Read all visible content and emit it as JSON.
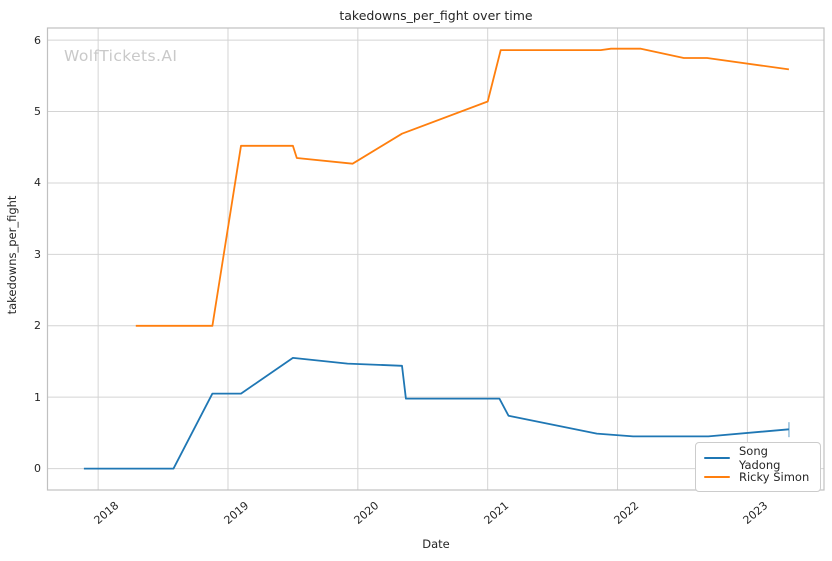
{
  "watermark": "WolfTickets.AI",
  "chart_data": {
    "type": "line",
    "title": "takedowns_per_fight over time",
    "xlabel": "Date",
    "ylabel": "takedowns_per_fight",
    "grid": true,
    "legend_position": "lower right",
    "xlim": [
      2017.61,
      2023.59
    ],
    "ylim": [
      -0.3,
      6.17
    ],
    "xticks": {
      "values": [
        2018,
        2019,
        2020,
        2021,
        2022,
        2023
      ],
      "labels": [
        "2018",
        "2019",
        "2020",
        "2021",
        "2022",
        "2023"
      ]
    },
    "yticks": {
      "values": [
        0,
        1,
        2,
        3,
        4,
        5,
        6
      ],
      "labels": [
        "0",
        "1",
        "2",
        "3",
        "4",
        "5",
        "6"
      ]
    },
    "series": [
      {
        "name": "Song Yadong",
        "color": "#1f77b4",
        "x": [
          2017.89,
          2018.58,
          2018.88,
          2019.1,
          2019.5,
          2019.92,
          2020.34,
          2020.37,
          2021.09,
          2021.16,
          2021.84,
          2022.12,
          2022.7,
          2023.32
        ],
        "y": [
          0.0,
          0.0,
          1.05,
          1.05,
          1.55,
          1.47,
          1.44,
          0.98,
          0.98,
          0.74,
          0.49,
          0.45,
          0.45,
          0.55
        ]
      },
      {
        "name": "Ricky Simon",
        "color": "#ff7f0e",
        "x": [
          2018.29,
          2018.88,
          2019.1,
          2019.5,
          2019.53,
          2019.96,
          2020.34,
          2021.0,
          2021.1,
          2021.87,
          2021.95,
          2022.18,
          2022.51,
          2022.69,
          2023.32
        ],
        "y": [
          2.0,
          2.0,
          4.52,
          4.52,
          4.35,
          4.27,
          4.69,
          5.14,
          5.86,
          5.86,
          5.88,
          5.88,
          5.75,
          5.75,
          5.59
        ]
      }
    ],
    "end_tick": {
      "series_index": 0,
      "x": 2023.32,
      "y1": 0.44,
      "y2": 0.65
    }
  }
}
